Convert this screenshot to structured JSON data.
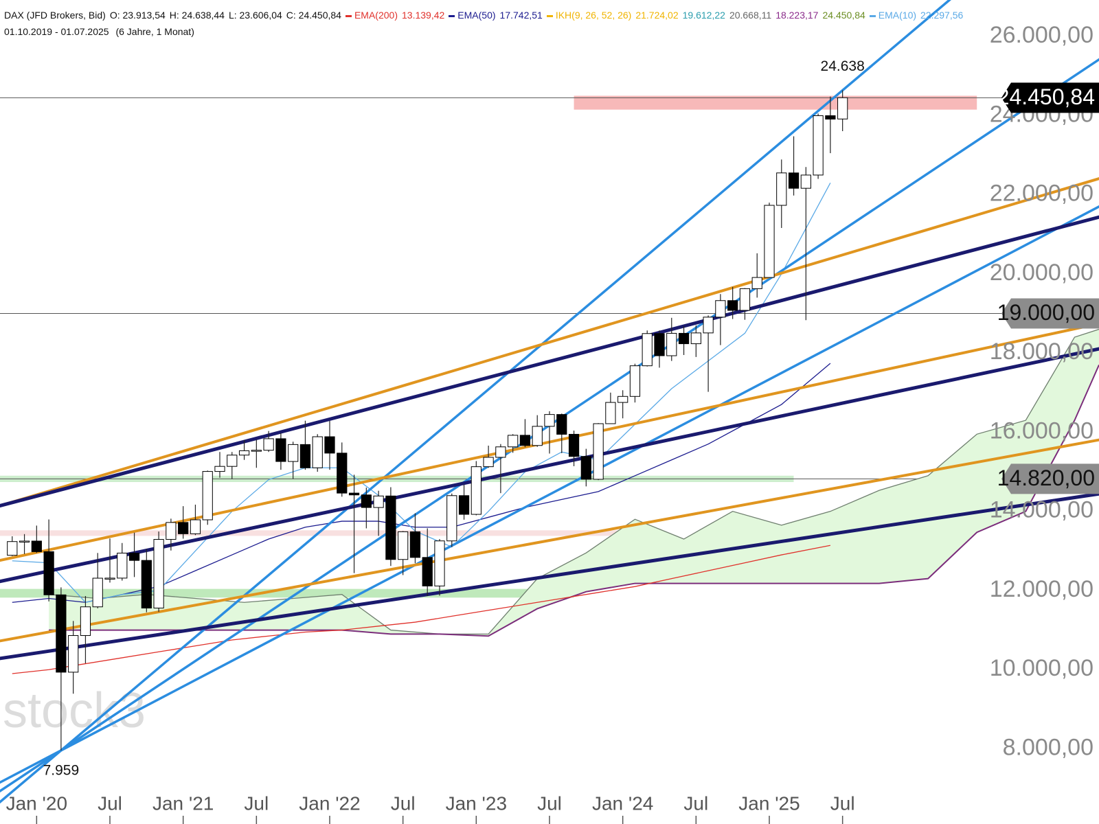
{
  "chart_data": {
    "type": "candlestick",
    "title": "DAX (JFD Brokers, Bid)",
    "ohlc": [
      "O: 23.913,54",
      "H: 24.638,44",
      "L: 23.606,04",
      "C: 24.450,84"
    ],
    "date_range": "01.10.2019 - 01.07.2025",
    "duration": "(6 Jahre, 1 Monat)",
    "watermark": "stock3",
    "x": [
      "2019-11",
      "2019-12",
      "2020-01",
      "2020-02",
      "2020-03",
      "2020-04",
      "2020-05",
      "2020-06",
      "2020-07",
      "2020-08",
      "2020-09",
      "2020-10",
      "2020-11",
      "2020-12",
      "2021-01",
      "2021-02",
      "2021-03",
      "2021-04",
      "2021-05",
      "2021-06",
      "2021-07",
      "2021-08",
      "2021-09",
      "2021-10",
      "2021-11",
      "2021-12",
      "2022-01",
      "2022-02",
      "2022-03",
      "2022-04",
      "2022-05",
      "2022-06",
      "2022-07",
      "2022-08",
      "2022-09",
      "2022-10",
      "2022-11",
      "2022-12",
      "2023-01",
      "2023-02",
      "2023-03",
      "2023-04",
      "2023-05",
      "2023-06",
      "2023-07",
      "2023-08",
      "2023-09",
      "2023-10",
      "2023-11",
      "2023-12",
      "2024-01",
      "2024-02",
      "2024-03",
      "2024-04",
      "2024-05",
      "2024-06",
      "2024-07",
      "2024-08",
      "2024-09",
      "2024-10",
      "2024-11",
      "2024-12",
      "2025-01",
      "2025-02",
      "2025-03",
      "2025-04",
      "2025-05",
      "2025-06",
      "2025-07"
    ],
    "open": [
      12890,
      13236,
      13249,
      12981,
      11890,
      9936,
      10862,
      11587,
      12311,
      12313,
      12945,
      12760,
      11556,
      13291,
      13719,
      13433,
      13786,
      15008,
      15136,
      15421,
      15531,
      15544,
      15835,
      15260,
      15688,
      15100,
      15885,
      15471,
      14461,
      14415,
      14097,
      14388,
      12784,
      13484,
      12835,
      12114,
      13253,
      14397,
      13924,
      15128,
      15365,
      15629,
      15922,
      15664,
      16148,
      16447,
      15947,
      15387,
      14810,
      16215,
      16752,
      16904,
      17678,
      18492,
      17932,
      18498,
      18235,
      18508,
      18907,
      19325,
      19078,
      19626,
      19909,
      21732,
      22551,
      22163,
      22497,
      23997,
      23913.54
    ],
    "high": [
      13370,
      13425,
      13640,
      13795,
      12080,
      11230,
      11860,
      12948,
      13313,
      13200,
      13460,
      13050,
      13490,
      13815,
      14131,
      14169,
      15030,
      15500,
      15500,
      15800,
      15810,
      16030,
      15980,
      15760,
      16290,
      15950,
      16285,
      15740,
      14925,
      14600,
      14520,
      14610,
      13500,
      13950,
      13570,
      13300,
      14450,
      14675,
      15270,
      15660,
      15700,
      15950,
      16330,
      16430,
      16530,
      16470,
      16040,
      15580,
      16230,
      17000,
      17060,
      17730,
      18570,
      18570,
      18890,
      18680,
      18700,
      18950,
      19490,
      19670,
      19640,
      20520,
      21800,
      22890,
      23476,
      22700,
      24050,
      24480,
      24638.44
    ],
    "low": [
      12870,
      12920,
      12950,
      11724,
      7959,
      9392,
      10160,
      11550,
      12200,
      12250,
      12340,
      11450,
      11460,
      13010,
      13310,
      13400,
      13660,
      14850,
      14817,
      15300,
      15100,
      15500,
      15050,
      14820,
      15050,
      15000,
      15050,
      14370,
      12440,
      13570,
      13380,
      12620,
      12390,
      12690,
      11860,
      11870,
      13100,
      13790,
      13900,
      15100,
      14460,
      15480,
      15620,
      15630,
      15460,
      15470,
      15140,
      14630,
      14790,
      16210,
      16350,
      16750,
      17660,
      17630,
      17800,
      17950,
      17900,
      17020,
      18200,
      18860,
      18840,
      19400,
      19900,
      21160,
      21980,
      18830,
      22400,
      23050,
      23606.04
    ],
    "close": [
      13236,
      13249,
      12981,
      11890,
      9936,
      10862,
      11587,
      12311,
      12313,
      12945,
      12760,
      11556,
      13291,
      13719,
      13433,
      13786,
      15008,
      15136,
      15421,
      15531,
      15544,
      15835,
      15260,
      15688,
      15100,
      15885,
      15471,
      14461,
      14415,
      14097,
      14388,
      12784,
      13484,
      12835,
      12114,
      13253,
      14397,
      13924,
      15128,
      15365,
      15629,
      15922,
      15664,
      16148,
      16447,
      15947,
      15387,
      14810,
      16215,
      16752,
      16904,
      17678,
      18492,
      17932,
      18498,
      18235,
      18508,
      18907,
      19325,
      19078,
      19626,
      19909,
      21732,
      22551,
      22163,
      22497,
      23997,
      23910,
      24450.84
    ],
    "color_up": "#ffffff",
    "color_down": "#000000",
    "wick_color": "#222222",
    "xlim": [
      "2019-10",
      "2027-04"
    ],
    "xticks": [
      {
        "value": "2020-01",
        "label": "Jan '20"
      },
      {
        "value": "2020-07",
        "label": "Jul"
      },
      {
        "value": "2021-01",
        "label": "Jan '21"
      },
      {
        "value": "2021-07",
        "label": "Jul"
      },
      {
        "value": "2022-01",
        "label": "Jan '22"
      },
      {
        "value": "2022-07",
        "label": "Jul"
      },
      {
        "value": "2023-01",
        "label": "Jan '23"
      },
      {
        "value": "2023-07",
        "label": "Jul"
      },
      {
        "value": "2024-01",
        "label": "Jan '24"
      },
      {
        "value": "2024-07",
        "label": "Jul"
      },
      {
        "value": "2025-01",
        "label": "Jan '25"
      },
      {
        "value": "2025-07",
        "label": "Jul"
      }
    ],
    "ylim": [
      6100,
      26920
    ],
    "yticks": [
      {
        "value": 8000,
        "label": "8.000,00"
      },
      {
        "value": 10000,
        "label": "10.000,00"
      },
      {
        "value": 12000,
        "label": "12.000,00"
      },
      {
        "value": 14000,
        "label": "14.000,00"
      },
      {
        "value": 16000,
        "label": "16.000,00"
      },
      {
        "value": 18000,
        "label": "18.000,00"
      },
      {
        "value": 20000,
        "label": "20.000,00"
      },
      {
        "value": 22000,
        "label": "22.000,00"
      },
      {
        "value": 24000,
        "label": "24.000,00"
      },
      {
        "value": 26000,
        "label": "26.000,00"
      }
    ],
    "grid": false,
    "zones": [
      {
        "x": [
          "2023-09",
          "2026-06"
        ],
        "range": [
          24150,
          24500
        ],
        "color": "#f7b9b9"
      },
      {
        "x": [
          "2019-10",
          "2025-03"
        ],
        "range": [
          14740,
          14900
        ],
        "color": "#cdeecd"
      },
      {
        "x": [
          "2019-10",
          "2024-02"
        ],
        "range": [
          13380,
          13520
        ],
        "color": "#f8e0e0"
      },
      {
        "x": [
          "2019-10",
          "2023-09"
        ],
        "range": [
          11820,
          12040
        ],
        "color": "#bfe9bb"
      }
    ],
    "levels": [
      {
        "value": 24450.84,
        "label": "24.450,84",
        "color": "#000000",
        "text_color": "#ffffff"
      },
      {
        "value": 19000,
        "label": "19.000,00",
        "color": "#8c8c8c",
        "text_color": "#111111"
      },
      {
        "value": 14820,
        "label": "14.820,00",
        "color": "#8c8c8c",
        "text_color": "#111111"
      }
    ],
    "series": [
      {
        "name": "EMA(200)",
        "legend_value": "13.139,42",
        "color": "#e0312b",
        "x": [
          "2019-11",
          "2020-02",
          "2020-05",
          "2020-08",
          "2020-11",
          "2021-02",
          "2021-05",
          "2021-08",
          "2021-11",
          "2022-02",
          "2022-05",
          "2022-08",
          "2022-11",
          "2023-02",
          "2023-05",
          "2023-08",
          "2023-11",
          "2024-02",
          "2024-05",
          "2024-08",
          "2024-11",
          "2025-02",
          "2025-06"
        ],
        "values": [
          9900,
          10000,
          10150,
          10300,
          10450,
          10600,
          10750,
          10850,
          10950,
          11000,
          11100,
          11200,
          11350,
          11500,
          11650,
          11800,
          11950,
          12100,
          12300,
          12500,
          12700,
          12900,
          13139
        ]
      },
      {
        "name": "EMA(50)",
        "legend_value": "17.742,51",
        "color": "#1c1c8f",
        "x": [
          "2019-11",
          "2020-02",
          "2020-05",
          "2020-08",
          "2020-11",
          "2021-02",
          "2021-05",
          "2021-08",
          "2021-11",
          "2022-02",
          "2022-05",
          "2022-08",
          "2022-11",
          "2023-02",
          "2023-05",
          "2023-08",
          "2023-11",
          "2024-02",
          "2024-05",
          "2024-08",
          "2024-11",
          "2025-02",
          "2025-06"
        ],
        "values": [
          11700,
          11800,
          11700,
          11900,
          12100,
          12500,
          12900,
          13300,
          13600,
          13750,
          13750,
          13600,
          13600,
          13850,
          14100,
          14300,
          14500,
          14900,
          15300,
          15700,
          16200,
          16700,
          17740
        ]
      },
      {
        "name": "EMA(10)",
        "legend_value": "22.297,56",
        "color": "#5aa9e6",
        "x": [
          "2019-11",
          "2020-02",
          "2020-05",
          "2020-08",
          "2020-11",
          "2021-02",
          "2021-05",
          "2021-08",
          "2021-11",
          "2022-02",
          "2022-05",
          "2022-08",
          "2022-11",
          "2023-02",
          "2023-05",
          "2023-08",
          "2023-11",
          "2024-02",
          "2024-05",
          "2024-08",
          "2024-11",
          "2025-02",
          "2025-06"
        ],
        "values": [
          12750,
          12700,
          11700,
          11900,
          12000,
          13000,
          14000,
          14800,
          15100,
          15100,
          14400,
          13500,
          13100,
          14000,
          15000,
          15500,
          15300,
          16200,
          17100,
          17800,
          18500,
          20000,
          22300
        ]
      }
    ],
    "cloud": {
      "name": "IKH(9, 26, 52, 26)",
      "color": "#f0b400",
      "fill": "#e2f8dc",
      "legend_values": [
        {
          "text": "21.724,02",
          "color": "#f0b400"
        },
        {
          "text": "19.612,22",
          "color": "#2a9dad"
        },
        {
          "text": "20.668,11",
          "color": "#666666"
        },
        {
          "text": "18.223,17",
          "color": "#8b2b8b"
        },
        {
          "text": "24.450,84",
          "color": "#6b8e23"
        }
      ],
      "x": [
        "2020-02",
        "2020-06",
        "2020-10",
        "2021-02",
        "2021-06",
        "2021-10",
        "2022-02",
        "2022-06",
        "2022-10",
        "2023-02",
        "2023-06",
        "2023-10",
        "2024-02",
        "2024-06",
        "2024-10",
        "2025-02",
        "2025-06",
        "2025-10",
        "2026-02",
        "2026-06",
        "2026-10",
        "2027-02",
        "2027-04"
      ],
      "span_a": {
        "color": "#6f7f6f",
        "values": [
          11900,
          11800,
          11900,
          11800,
          11700,
          11800,
          11900,
          11000,
          10900,
          10900,
          12300,
          12950,
          13800,
          13300,
          14000,
          13650,
          14000,
          14530,
          14900,
          15950,
          16300,
          18400,
          18600
        ]
      },
      "span_b": {
        "color": "#7b2d7b",
        "values": [
          11000,
          11000,
          11000,
          11000,
          11000,
          11000,
          11000,
          10900,
          10900,
          10850,
          11540,
          11970,
          12180,
          12180,
          12180,
          12180,
          12180,
          12180,
          12300,
          13470,
          14000,
          16300,
          17700
        ]
      }
    },
    "trendlines": [
      {
        "color": "#2b8de0",
        "width": 3.5,
        "x": [
          "2020-03",
          "2025-07"
        ],
        "values": [
          7959,
          24638.44
        ]
      },
      {
        "color": "#2b8de0",
        "width": 3.5,
        "x": [
          "2020-03",
          "2027-04"
        ],
        "values": [
          7959,
          25416
        ]
      },
      {
        "color": "#2b8de0",
        "width": 3.5,
        "x": [
          "2020-03",
          "2027-04"
        ],
        "values": [
          7959,
          21700
        ]
      },
      {
        "color": "#e0951f",
        "width": 4,
        "x": [
          "2019-10",
          "2027-04"
        ],
        "values": [
          14142,
          22407
        ]
      },
      {
        "color": "#e0951f",
        "width": 4,
        "x": [
          "2019-10",
          "2027-04"
        ],
        "values": [
          12761,
          18743
        ]
      },
      {
        "color": "#e0951f",
        "width": 4,
        "x": [
          "2019-10",
          "2027-04"
        ],
        "values": [
          10726,
          15805
        ]
      },
      {
        "color": "#1a1a6e",
        "width": 5,
        "x": [
          "2019-10",
          "2027-04"
        ],
        "values": [
          14142,
          21434
        ]
      },
      {
        "color": "#1a1a6e",
        "width": 5,
        "x": [
          "2019-10",
          "2027-04"
        ],
        "values": [
          12230,
          18106
        ]
      },
      {
        "color": "#1a1a6e",
        "width": 5,
        "x": [
          "2019-10",
          "2027-04"
        ],
        "values": [
          10283,
          14442
        ]
      }
    ],
    "annotations": [
      {
        "x": "2025-07",
        "value": 24638.44,
        "label": "24.638",
        "position": "above"
      },
      {
        "x": "2020-03",
        "value": 7959,
        "label": "7.959",
        "position": "below"
      }
    ]
  }
}
